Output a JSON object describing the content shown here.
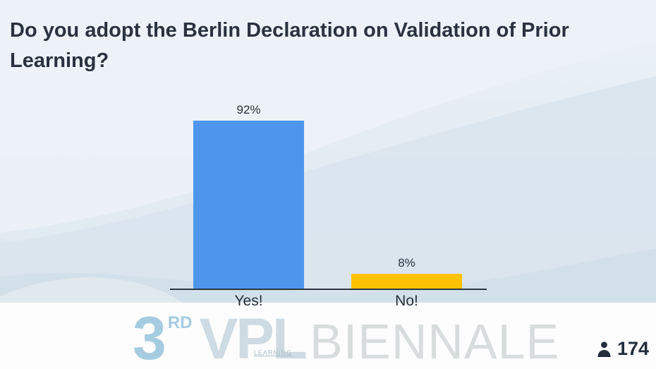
{
  "slide": {
    "title": "Do you adopt the Berlin Declaration on Validation of Prior Learning?"
  },
  "chart_data": {
    "type": "bar",
    "title": "Do you adopt the Berlin Declaration on Validation of Prior Learning?",
    "categories": [
      "Yes!",
      "No!"
    ],
    "values": [
      92,
      8
    ],
    "value_labels": [
      "92%",
      "8%"
    ],
    "bar_colors": [
      "#4D96EC",
      "#FFC203"
    ],
    "ylim": [
      0,
      100
    ],
    "xlabel": "",
    "ylabel": "",
    "grid": false,
    "legend": false,
    "value_labels_position": "above-bars"
  },
  "watermark": {
    "ordinal": "3",
    "ordinal_suffix": "RD",
    "brand_primary": "VPL",
    "brand_primary_sub": "LEARNING",
    "brand_secondary": "BIENNALE"
  },
  "footer": {
    "participants_count": "174",
    "participants_icon": "person-icon"
  },
  "colors": {
    "title_text": "#2A3240",
    "axis": "#2B3540",
    "bar_yes": "#4D96EC",
    "bar_no": "#FFC203",
    "background_top": "#ECF2F7",
    "background_bottom": "#DDE8EF",
    "footer_band": "#FDFDFE",
    "watermark_blue": "#A5CBE0",
    "watermark_gray": "#D9DCDC",
    "counter_text": "#232D3B"
  }
}
